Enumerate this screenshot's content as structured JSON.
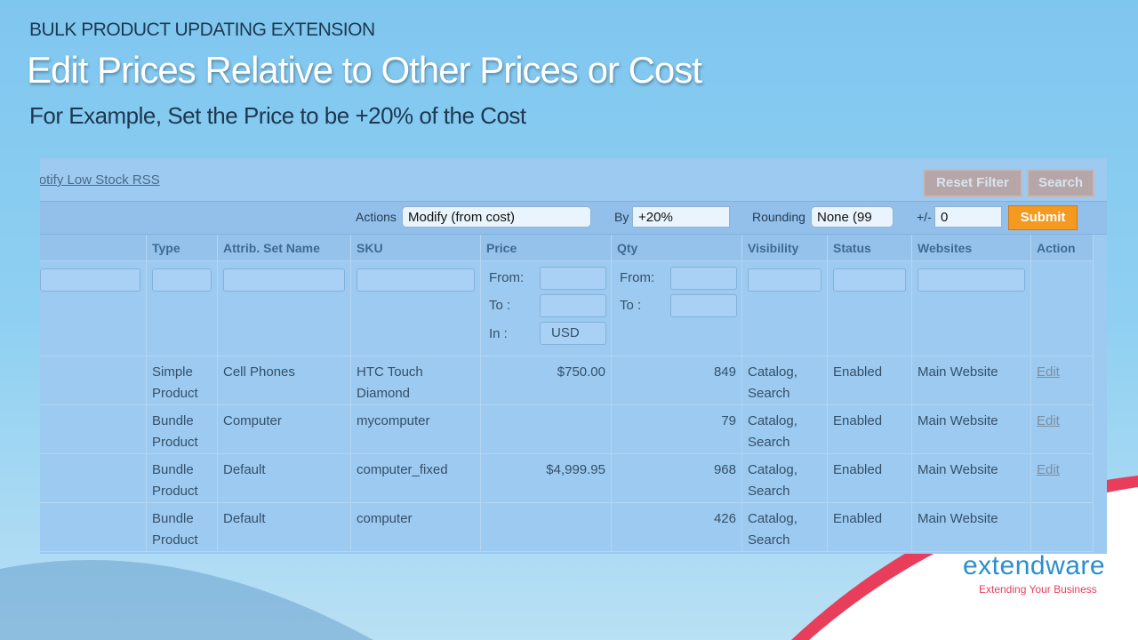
{
  "header": {
    "kicker": "BULK PRODUCT UPDATING EXTENSION",
    "title": "Edit Prices Relative to Other Prices or Cost",
    "subtitle": "For Example, Set the Price to be +20% of the Cost"
  },
  "toolbar": {
    "link": "Notify Low Stock RSS",
    "reset": "Reset Filter",
    "search": "Search"
  },
  "actions": {
    "actions_label": "Actions",
    "action_value": "Modify (from cost)",
    "by_label": "By",
    "by_value": "+20%",
    "rounding_label": "Rounding",
    "rounding_value": "None (99",
    "plusminus_label": "+/-",
    "plusminus_value": "0",
    "submit": "Submit"
  },
  "table": {
    "columns": [
      "Type",
      "Attrib. Set Name",
      "SKU",
      "Price",
      "Qty",
      "Visibility",
      "Status",
      "Websites",
      "Action"
    ],
    "filter": {
      "from": "From:",
      "to": "To :",
      "in": "In :",
      "currency": "USD"
    },
    "rows": [
      [
        "Simple Product",
        "Cell Phones",
        "HTC Touch Diamond",
        "$750.00",
        "849",
        "Catalog, Search",
        "Enabled",
        "Main Website",
        "Edit"
      ],
      [
        "Bundle Product",
        "Computer",
        "mycomputer",
        null,
        "79",
        "Catalog, Search",
        "Enabled",
        "Main Website",
        "Edit"
      ],
      [
        "Bundle Product",
        "Default",
        "computer_fixed",
        "$4,999.95",
        "968",
        "Catalog, Search",
        "Enabled",
        "Main Website",
        "Edit"
      ],
      [
        "Bundle Product",
        "Default",
        "computer",
        null,
        "426",
        "Catalog, Search",
        "Enabled",
        "Main Website",
        null
      ]
    ]
  },
  "brand": {
    "name": "extendware",
    "tagline": "Extending Your Business"
  }
}
